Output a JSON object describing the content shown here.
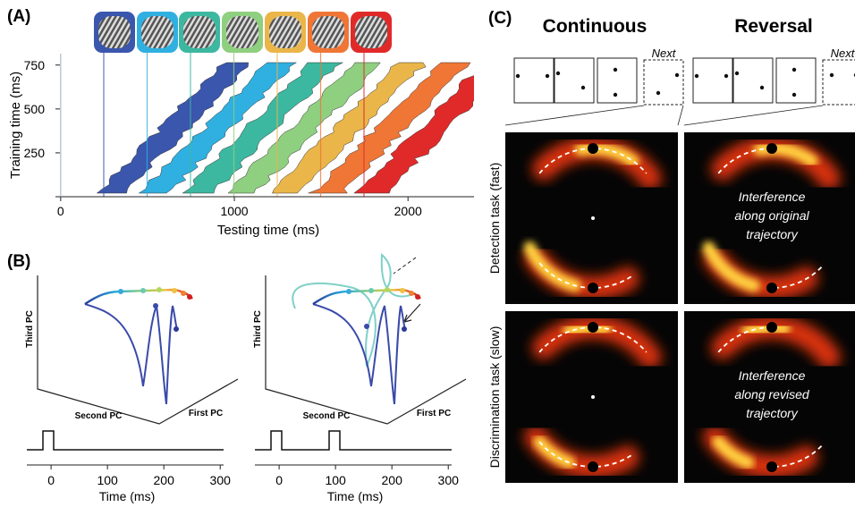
{
  "panel_a": {
    "label": "(A)",
    "xlabel": "Testing time (ms)",
    "ylabel": "Training time (ms)",
    "xlim": [
      -30,
      2380
    ],
    "ylim": [
      0,
      815
    ],
    "xticks": [
      0,
      1000,
      2000
    ],
    "yticks": [
      250,
      500,
      750
    ]
  },
  "panel_b": {
    "label": "(B)",
    "plots": [
      {
        "axis_labels": [
          "Third PC",
          "Second PC",
          "First PC"
        ],
        "xlabel": "Time (ms)",
        "xlim": [
          -43,
          306
        ],
        "xticks": [
          0,
          100,
          200,
          300
        ]
      },
      {
        "axis_labels": [
          "Third PC",
          "Second PC",
          "First PC"
        ],
        "xlabel": "Time (ms)",
        "xlim": [
          -43,
          306
        ],
        "xticks": [
          0,
          100,
          200,
          300
        ]
      }
    ]
  },
  "panel_c": {
    "label": "(C)",
    "columns": [
      {
        "title": "Continuous",
        "next": "Next"
      },
      {
        "title": "Reversal",
        "next": "Next"
      }
    ],
    "rows": [
      "Detection task (fast)",
      "Discrimination task (slow)"
    ],
    "annotations": [
      [
        "Interference",
        "along original",
        "trajectory"
      ],
      [
        "Interference",
        "along revised",
        "trajectory"
      ]
    ]
  }
}
